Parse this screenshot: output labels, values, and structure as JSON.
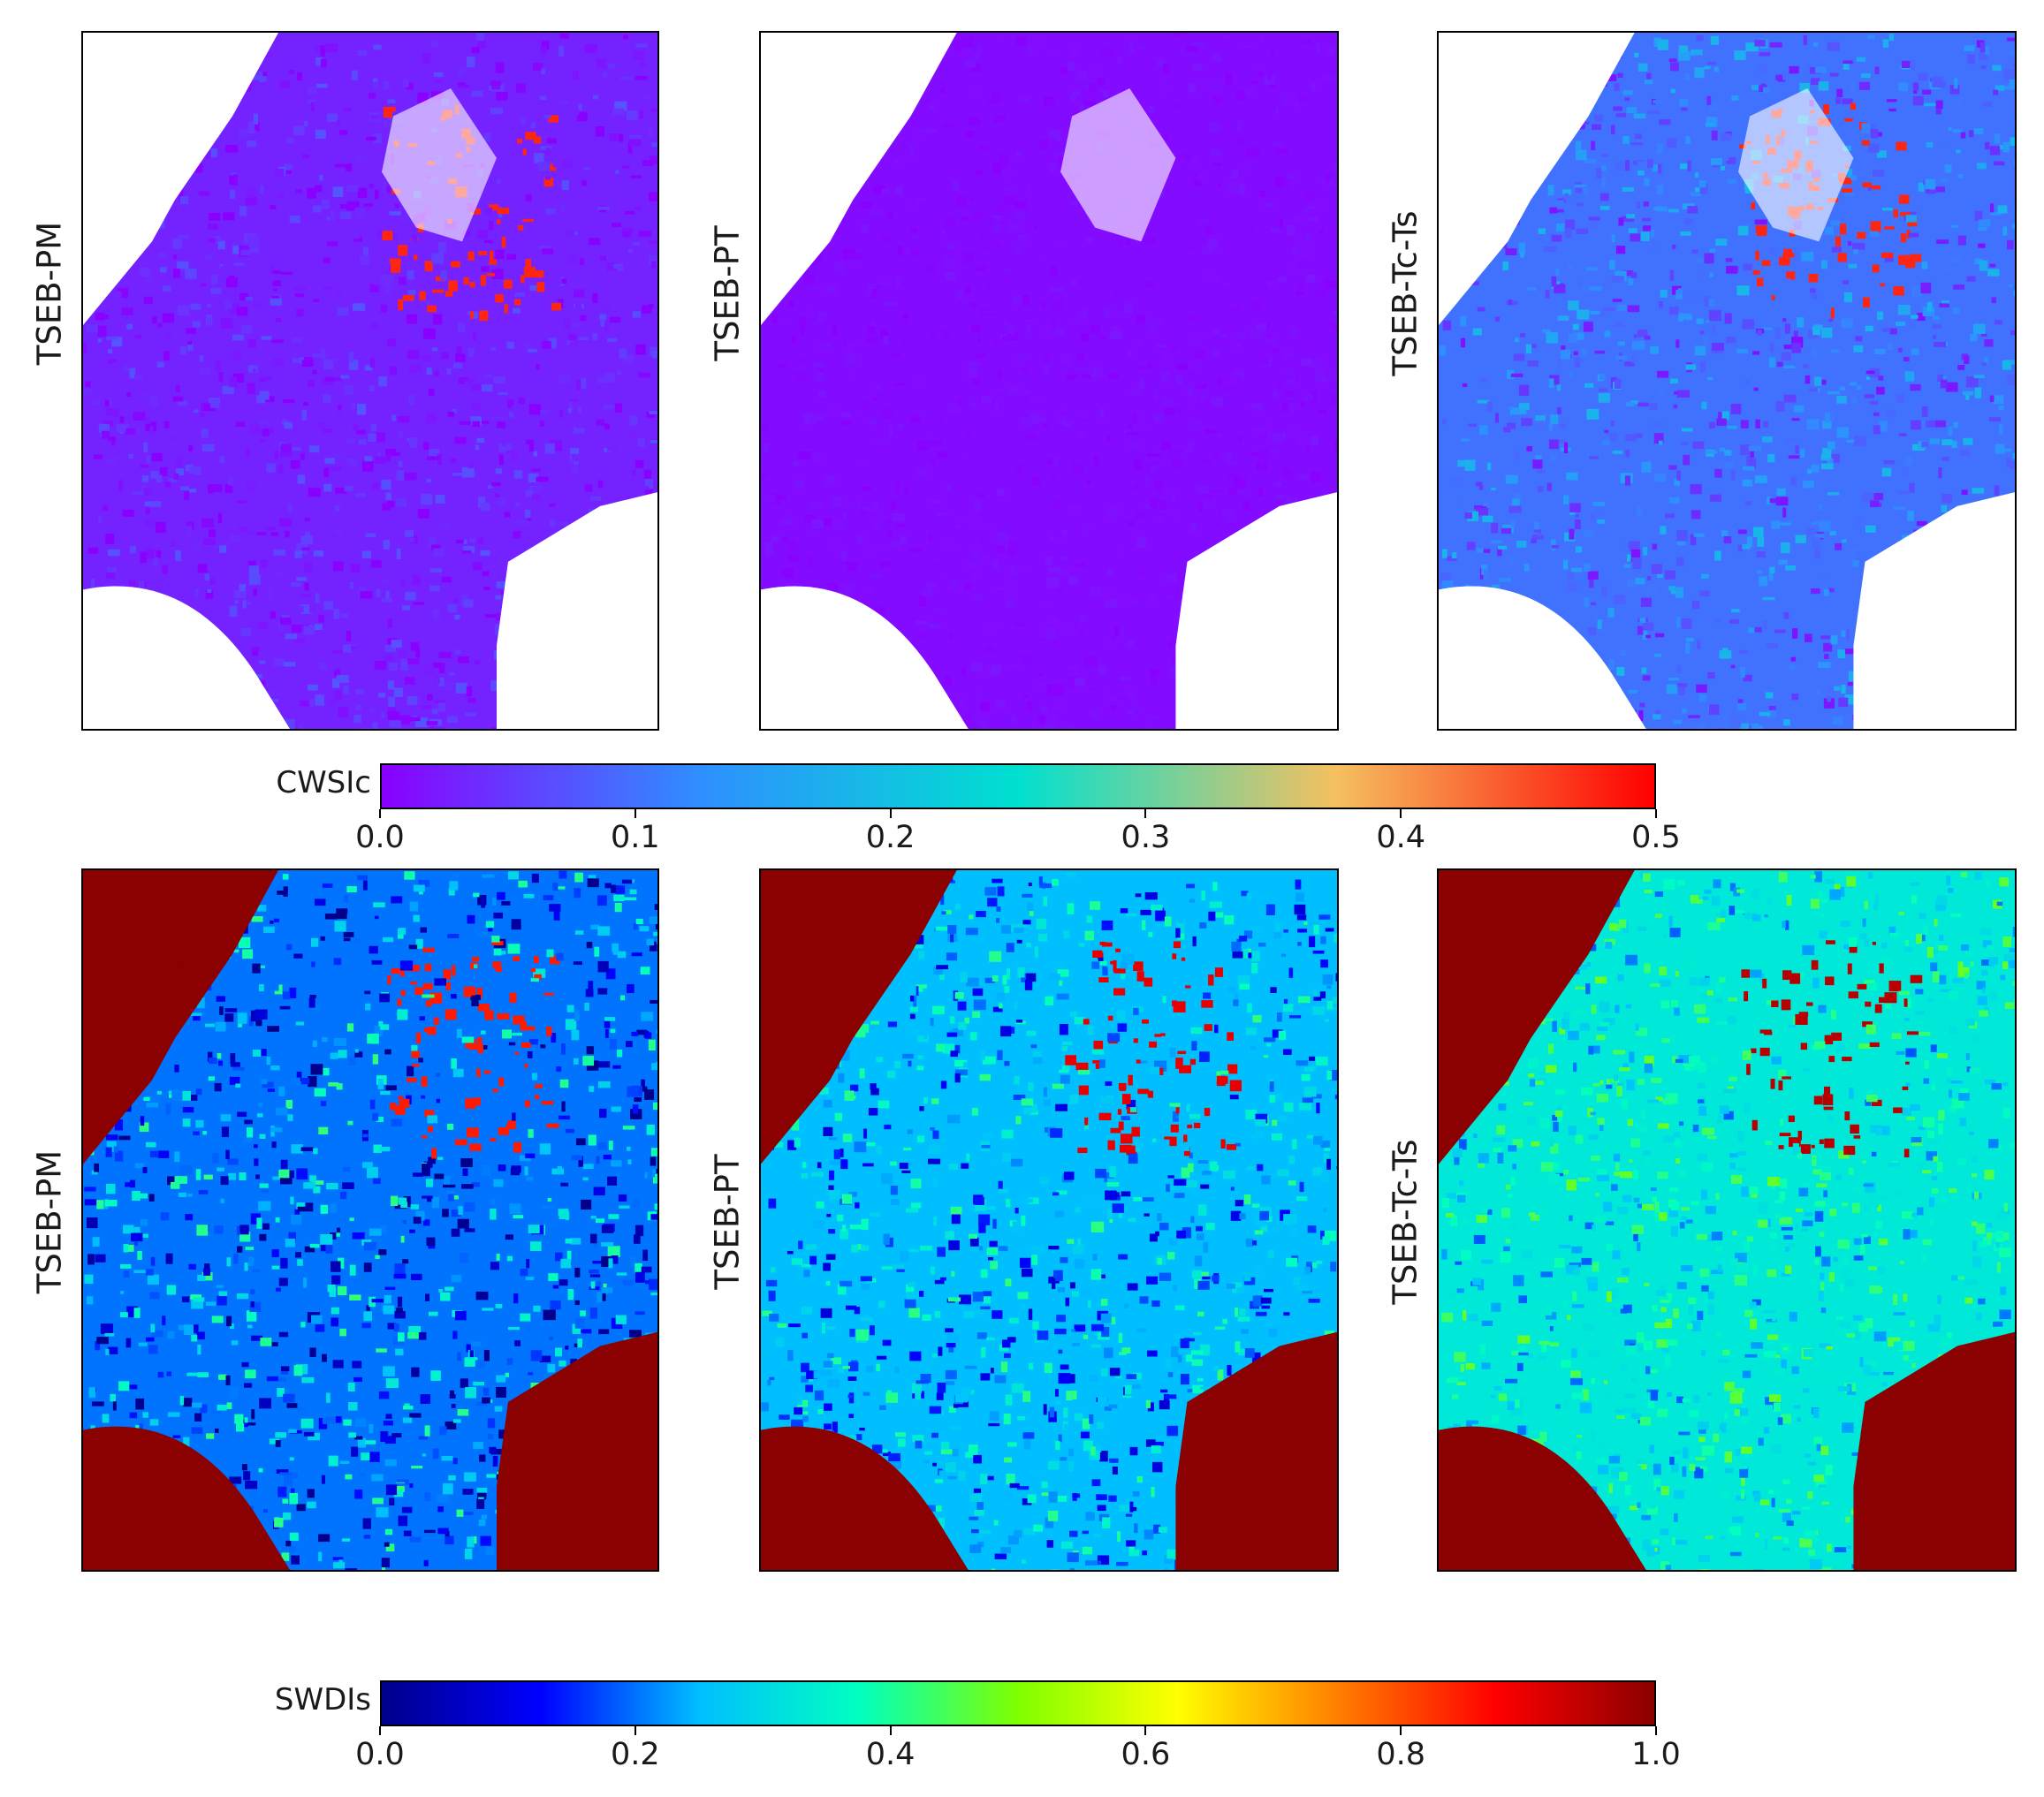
{
  "chart_data": [
    {
      "type": "heatmap",
      "row": "top",
      "panels": [
        {
          "label": "TSEB-PM"
        },
        {
          "label": "TSEB-PT"
        },
        {
          "label": "TSEB-Tc-Ts"
        }
      ],
      "colorbar": {
        "label": "CWSIc",
        "range": [
          0.0,
          0.5
        ],
        "ticks": [
          "0.0",
          "0.1",
          "0.2",
          "0.3",
          "0.4",
          "0.5"
        ],
        "colormap": [
          "#8a00ff",
          "#2f8fff",
          "#00e0d0",
          "#f5c060",
          "#ff0000"
        ]
      }
    },
    {
      "type": "heatmap",
      "row": "bottom",
      "panels": [
        {
          "label": "TSEB-PM"
        },
        {
          "label": "TSEB-PT"
        },
        {
          "label": "TSEB-Tc-Ts"
        }
      ],
      "colorbar": {
        "label": "SWDIs",
        "range": [
          0.0,
          1.0
        ],
        "ticks": [
          "0.0",
          "0.2",
          "0.4",
          "0.6",
          "0.8",
          "1.0"
        ],
        "colormap": [
          "#00008b",
          "#0000ff",
          "#00bfff",
          "#00ffc0",
          "#7fff00",
          "#ffff00",
          "#ff8000",
          "#ff0000",
          "#8b0000"
        ]
      }
    }
  ]
}
